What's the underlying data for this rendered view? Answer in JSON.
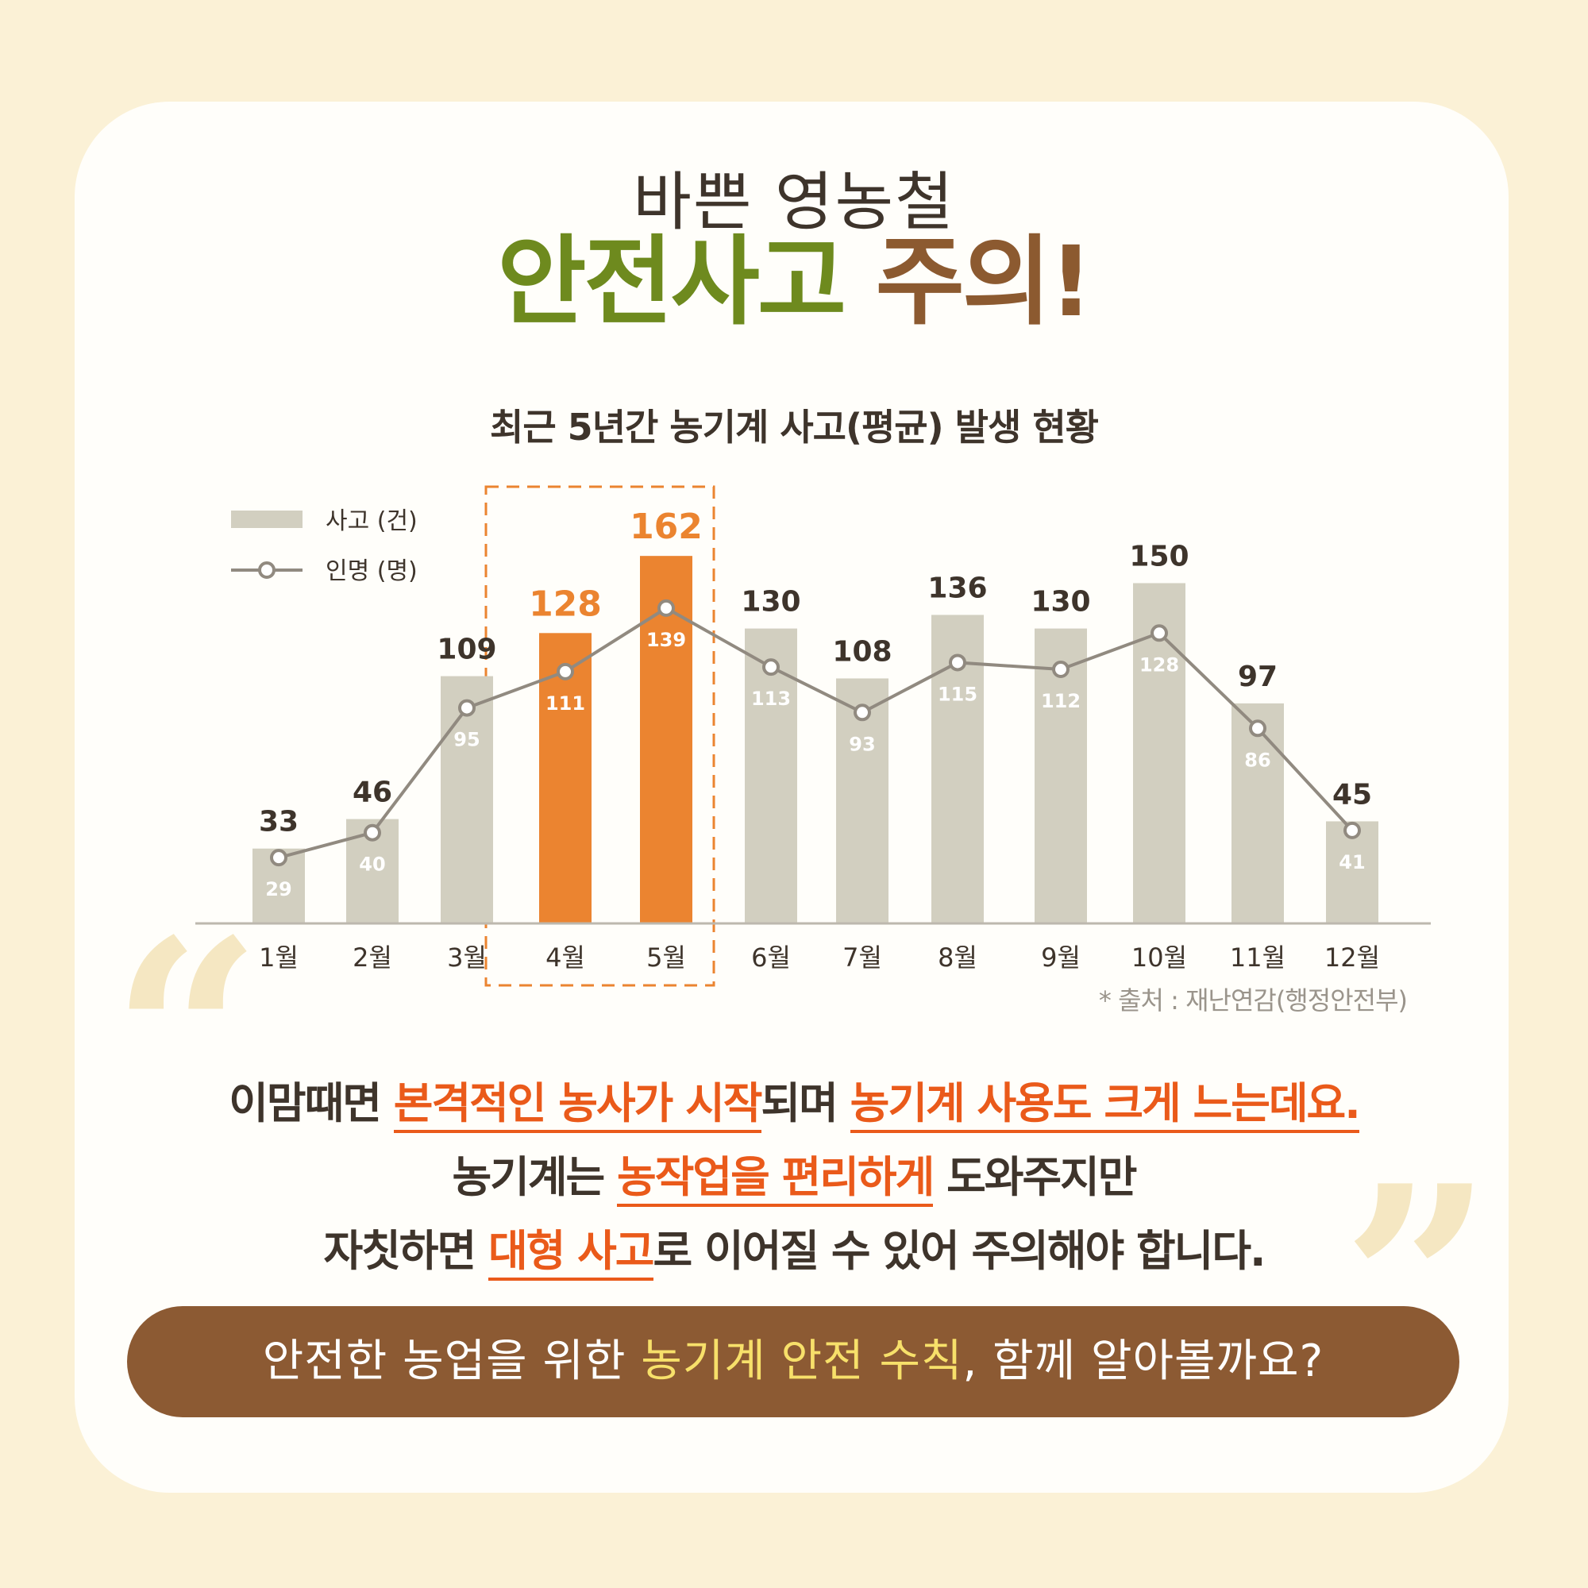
{
  "header": {
    "title_line1": "바쁜 영농철",
    "title_line2_green": "안전사고",
    "title_line2_brown": "주의!",
    "subtitle": "최근 5년간 농기계 사고(평균) 발생 현황"
  },
  "chart_data": {
    "type": "bar",
    "title": "최근 5년간 농기계 사고(평균) 발생 현황",
    "categories": [
      "1월",
      "2월",
      "3월",
      "4월",
      "5월",
      "6월",
      "7월",
      "8월",
      "9월",
      "10월",
      "11월",
      "12월"
    ],
    "series": [
      {
        "name": "사고 (건)",
        "type": "bar",
        "values": [
          33,
          46,
          109,
          128,
          162,
          130,
          108,
          136,
          130,
          150,
          97,
          45
        ]
      },
      {
        "name": "인명 (명)",
        "type": "line",
        "values": [
          29,
          40,
          95,
          111,
          139,
          113,
          93,
          115,
          112,
          128,
          86,
          41
        ]
      }
    ],
    "highlighted_categories": [
      "4월",
      "5월"
    ],
    "colors": {
      "bar": "#D2CFC0",
      "bar_highlight": "#EB8430",
      "line": "#918A80",
      "label_highlight": "#EB8430",
      "label": "#3E342B",
      "axis": "#BDB8AE"
    },
    "legend_position": "top-left",
    "grid": false
  },
  "source": "* 출처 : 재난연감(행정안전부)",
  "body": {
    "line1": [
      {
        "text": "이맘때면 ",
        "hl": false
      },
      {
        "text": "본격적인 농사가 시작",
        "hl": true
      },
      {
        "text": "되며 ",
        "hl": false
      },
      {
        "text": "농기계 사용도 크게 느는데요.",
        "hl": true
      }
    ],
    "line2": [
      {
        "text": "농기계는 ",
        "hl": false
      },
      {
        "text": "농작업을 편리하게",
        "hl": true
      },
      {
        "text": " 도와주지만",
        "hl": false
      }
    ],
    "line3": [
      {
        "text": "자칫하면 ",
        "hl": false
      },
      {
        "text": "대형 사고",
        "hl": true
      },
      {
        "text": "로 이어질 수 있어 주의해야 합니다.",
        "hl": false
      }
    ]
  },
  "banner": {
    "before": "안전한 농업을 위한 ",
    "highlight": "농기계 안전 수칙",
    "after": ", 함께 알아볼까요?"
  }
}
